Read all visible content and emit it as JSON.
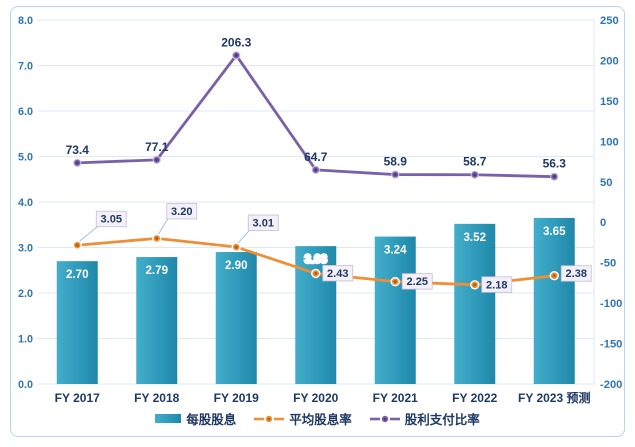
{
  "chart_data": {
    "type": "combo",
    "categories": [
      "FY 2017",
      "FY 2018",
      "FY 2019",
      "FY 2020",
      "FY 2021",
      "FY 2022",
      "FY 2023 预测"
    ],
    "series": [
      {
        "name": "每股股息",
        "type": "bar",
        "axis": "left",
        "values": [
          2.7,
          2.79,
          2.9,
          3.03,
          3.24,
          3.52,
          3.65
        ],
        "labels": [
          "2.70",
          "2.79",
          "2.90",
          "3.03",
          "3.24",
          "3.52",
          "3.65"
        ],
        "color": "#2E9DBE",
        "gradient": [
          "#43AECB",
          "#1F88AA"
        ],
        "label_color": "#FFFFFF",
        "dark_label_index": 3,
        "dark_label_color": "#1F3864"
      },
      {
        "name": "平均股息率",
        "type": "line",
        "axis": "left",
        "values": [
          3.05,
          3.2,
          3.01,
          2.43,
          2.25,
          2.18,
          2.38
        ],
        "labels": [
          "3.05",
          "3.20",
          "3.01",
          "2.43",
          "2.25",
          "2.18",
          "2.38"
        ],
        "color": "#EE8F35",
        "marker_core": "#B85E13",
        "callout_fill": "#F4F0F7",
        "callout_border": "#C8BCD8",
        "label_color": "#1F3864"
      },
      {
        "name": "股利支付比率",
        "type": "line",
        "axis": "right",
        "values": [
          73.4,
          77.1,
          206.3,
          64.7,
          58.9,
          58.7,
          56.3
        ],
        "labels": [
          "73.4",
          "77.1",
          "206.3",
          "64.7",
          "58.9",
          "58.7",
          "56.3"
        ],
        "color": "#7A60A8",
        "marker_core": "#4E3B77",
        "label_color": "#1F3864"
      }
    ],
    "left_axis": {
      "min": 0,
      "max": 8,
      "labels": [
        "8.0",
        "7.0",
        "6.0",
        "5.0",
        "4.0",
        "3.0",
        "2.0",
        "1.0",
        "0.0"
      ],
      "color": "#2E75B6"
    },
    "right_axis": {
      "min": -200,
      "max": 250,
      "labels": [
        "250",
        "200",
        "150",
        "100",
        "50",
        "0",
        "-50",
        "-100",
        "-150",
        "-200"
      ],
      "color": "#2E75B6"
    },
    "grid": true,
    "legend_position": "bottom"
  },
  "styles": {
    "grid_color": "#DEE9F5",
    "axis_line_color": "#DEE9F5",
    "frame_border": "#B9D5EC",
    "category_label_color": "#1F3864",
    "leader_color": "#9DC3E6",
    "background": "#FFFFFF"
  }
}
